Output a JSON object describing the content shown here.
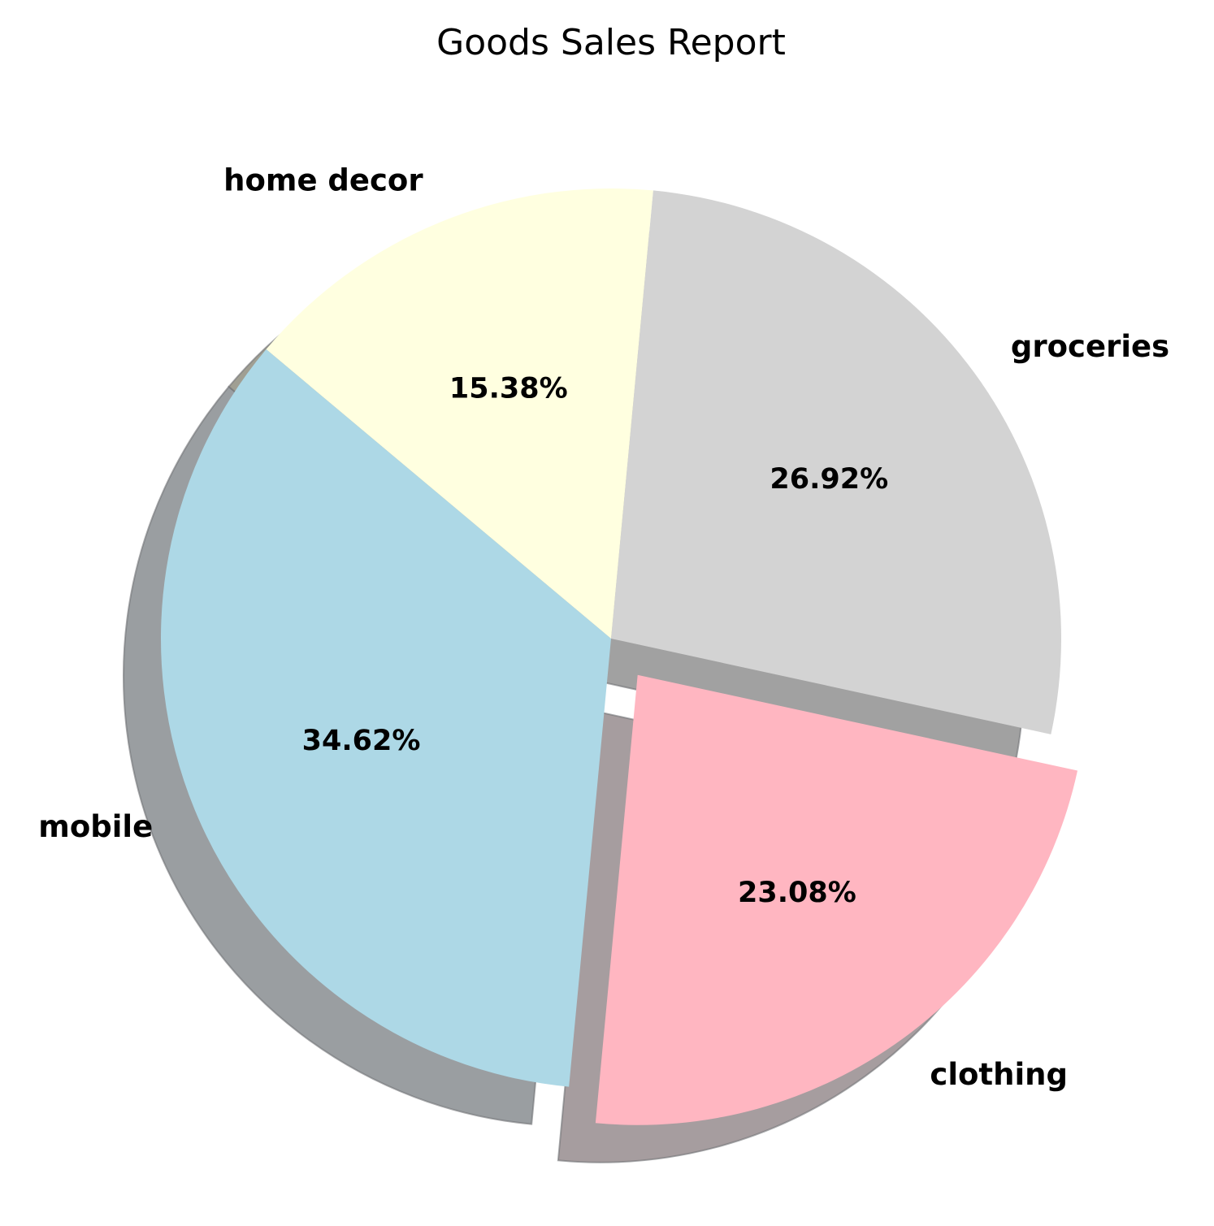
{
  "chart_data": {
    "type": "pie",
    "title": "Goods Sales Report",
    "categories": [
      "mobile",
      "clothing",
      "groceries",
      "home decor"
    ],
    "values": [
      34.62,
      23.08,
      26.92,
      15.38
    ],
    "percent_labels": [
      "34.62%",
      "23.08%",
      "26.92%",
      "15.38%"
    ],
    "colors": [
      "#add8e6",
      "#ffb6c1",
      "#d3d3d3",
      "#ffffe0"
    ],
    "start_angle_deg": 140,
    "direction": "counterclockwise",
    "explode": [
      0,
      0.1,
      0,
      0
    ],
    "shadow": true,
    "legend": "none"
  }
}
